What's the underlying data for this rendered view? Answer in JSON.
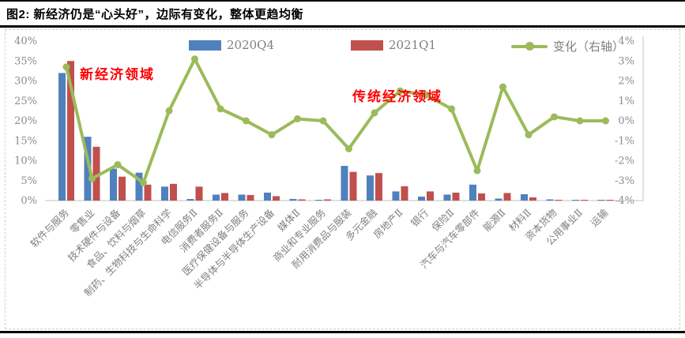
{
  "header": {
    "title": "图2: 新经济仍是“心头好”，边际有变化，整体更趋均衡"
  },
  "legend": {
    "items": [
      {
        "label": "2020Q4",
        "color": "#4F81BD",
        "type": "bar"
      },
      {
        "label": "2021Q1",
        "color": "#C0504D",
        "type": "bar"
      },
      {
        "label": "变化（右轴）",
        "color": "#9BBB59",
        "type": "line"
      }
    ]
  },
  "annotations": {
    "new_economy": {
      "text": "新经济领域",
      "color": "#FF0000"
    },
    "traditional_economy": {
      "text": "传统经济领域",
      "color": "#FF0000"
    }
  },
  "chart_data": {
    "type": "bar+line",
    "title": "图2: 新经济仍是“心头好”，边际有变化，整体更趋均衡",
    "grid": false,
    "legend_position": "top",
    "categories": [
      "软件与服务",
      "零售业",
      "技术硬件与设备",
      "食品、饮料与烟草",
      "制药、生物科技与生命科学",
      "电信服务Ⅱ",
      "消费者服务Ⅱ",
      "医疗保健设备与服务",
      "半导体与半导体生产设备",
      "媒体Ⅱ",
      "商业和专业服务",
      "耐用消费品与服装",
      "多元金融",
      "房地产Ⅱ",
      "银行",
      "保险Ⅱ",
      "汽车与汽车零部件",
      "能源Ⅱ",
      "材料Ⅱ",
      "资本货物",
      "公用事业Ⅱ",
      "运输"
    ],
    "series": [
      {
        "name": "2020Q4",
        "type": "bar",
        "axis": "left",
        "color": "#4F81BD",
        "values": [
          32,
          16,
          8,
          7,
          3.5,
          0.4,
          1.5,
          1.5,
          2.0,
          0.4,
          0.2,
          8.7,
          6.3,
          2.3,
          1.0,
          1.5,
          4.0,
          0.5,
          1.6,
          0.3,
          0.2,
          0.2
        ]
      },
      {
        "name": "2021Q1",
        "type": "bar",
        "axis": "left",
        "color": "#C0504D",
        "values": [
          35,
          13.5,
          6,
          4,
          4.2,
          3.5,
          1.9,
          1.4,
          1.1,
          0.3,
          0.3,
          7.2,
          6.9,
          3.6,
          2.3,
          2.0,
          1.8,
          1.9,
          0.8,
          0.2,
          0.2,
          0.2
        ]
      },
      {
        "name": "变化（右轴）",
        "type": "line",
        "axis": "right",
        "color": "#9BBB59",
        "values": [
          2.7,
          -2.9,
          -2.2,
          -3.1,
          0.5,
          3.1,
          0.6,
          0.0,
          -0.7,
          0.1,
          0.0,
          -1.4,
          0.4,
          1.5,
          1.3,
          0.6,
          -2.5,
          1.7,
          -0.7,
          0.2,
          0.0,
          0.0
        ]
      }
    ],
    "left_axis": {
      "min": 0,
      "max": 40,
      "step": 5,
      "ticks": [
        "0%",
        "5%",
        "10%",
        "15%",
        "20%",
        "25%",
        "30%",
        "35%",
        "40%"
      ]
    },
    "right_axis": {
      "min": -4,
      "max": 4,
      "step": 1,
      "ticks": [
        "-4%",
        "-3%",
        "-2%",
        "-1%",
        "0%",
        "1%",
        "2%",
        "3%",
        "4%"
      ]
    }
  }
}
